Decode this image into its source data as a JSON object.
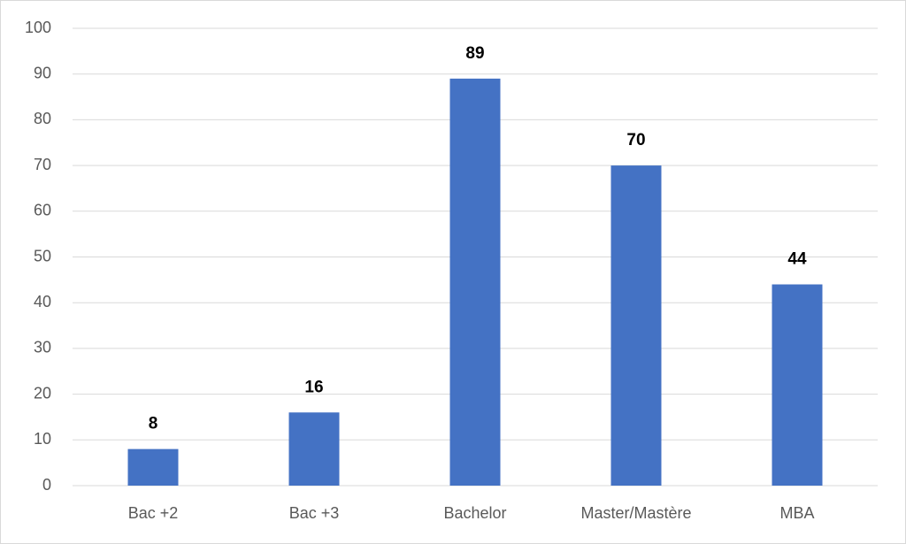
{
  "chart_data": {
    "type": "bar",
    "categories": [
      "Bac +2",
      "Bac +3",
      "Bachelor",
      "Master/Mastère",
      "MBA"
    ],
    "values": [
      8,
      16,
      89,
      70,
      44
    ],
    "color": "#4472c4",
    "ylim": [
      0,
      100
    ],
    "yticks": [
      0,
      10,
      20,
      30,
      40,
      50,
      60,
      70,
      80,
      90,
      100
    ],
    "grid": true
  }
}
